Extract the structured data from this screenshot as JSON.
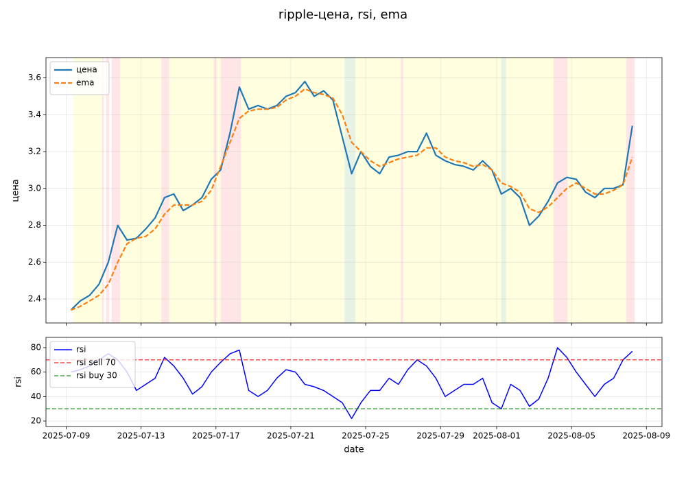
{
  "chart_data": [
    {
      "type": "line",
      "title": "ripple-цена, rsi, ema",
      "ylabel": "цена",
      "grid": true,
      "legend": "upper left",
      "x": [
        "2025-07-09T06:00",
        "2025-07-09T18:00",
        "2025-07-10T06:00",
        "2025-07-10T18:00",
        "2025-07-11T06:00",
        "2025-07-11T18:00",
        "2025-07-12T06:00",
        "2025-07-12T18:00",
        "2025-07-13T06:00",
        "2025-07-13T18:00",
        "2025-07-14T06:00",
        "2025-07-14T18:00",
        "2025-07-15T06:00",
        "2025-07-15T18:00",
        "2025-07-16T06:00",
        "2025-07-16T18:00",
        "2025-07-17T06:00",
        "2025-07-17T18:00",
        "2025-07-18T06:00",
        "2025-07-18T18:00",
        "2025-07-19T06:00",
        "2025-07-19T18:00",
        "2025-07-20T06:00",
        "2025-07-20T18:00",
        "2025-07-21T06:00",
        "2025-07-21T18:00",
        "2025-07-22T06:00",
        "2025-07-22T18:00",
        "2025-07-23T06:00",
        "2025-07-23T18:00",
        "2025-07-24T06:00",
        "2025-07-24T18:00",
        "2025-07-25T06:00",
        "2025-07-25T18:00",
        "2025-07-26T06:00",
        "2025-07-26T18:00",
        "2025-07-27T06:00",
        "2025-07-27T18:00",
        "2025-07-28T06:00",
        "2025-07-28T18:00",
        "2025-07-29T06:00",
        "2025-07-29T18:00",
        "2025-07-30T06:00",
        "2025-07-30T18:00",
        "2025-07-31T06:00",
        "2025-07-31T18:00",
        "2025-08-01T06:00",
        "2025-08-01T18:00",
        "2025-08-02T06:00",
        "2025-08-02T18:00",
        "2025-08-03T06:00",
        "2025-08-03T18:00",
        "2025-08-04T06:00",
        "2025-08-04T18:00",
        "2025-08-05T06:00",
        "2025-08-05T18:00",
        "2025-08-06T06:00",
        "2025-08-06T18:00",
        "2025-08-07T06:00",
        "2025-08-07T18:00",
        "2025-08-08T06:00"
      ],
      "series": [
        {
          "name": "цена",
          "color": "#1f77b4",
          "values": [
            2.34,
            2.39,
            2.42,
            2.48,
            2.6,
            2.8,
            2.72,
            2.73,
            2.78,
            2.84,
            2.95,
            2.97,
            2.88,
            2.91,
            2.95,
            3.05,
            3.1,
            3.3,
            3.55,
            3.43,
            3.45,
            3.43,
            3.45,
            3.5,
            3.52,
            3.58,
            3.5,
            3.53,
            3.48,
            3.28,
            3.08,
            3.2,
            3.12,
            3.08,
            3.17,
            3.18,
            3.2,
            3.2,
            3.3,
            3.18,
            3.15,
            3.13,
            3.12,
            3.1,
            3.15,
            3.1,
            2.97,
            3.0,
            2.95,
            2.8,
            2.85,
            2.93,
            3.03,
            3.06,
            3.05,
            2.98,
            2.95,
            3.0,
            3.0,
            3.02,
            3.34
          ]
        },
        {
          "name": "ema",
          "color": "#ff7f0e",
          "dashed": true,
          "values": [
            2.34,
            2.36,
            2.39,
            2.42,
            2.48,
            2.6,
            2.7,
            2.73,
            2.74,
            2.78,
            2.86,
            2.91,
            2.91,
            2.91,
            2.93,
            2.99,
            3.12,
            3.25,
            3.38,
            3.42,
            3.43,
            3.43,
            3.44,
            3.48,
            3.5,
            3.54,
            3.52,
            3.51,
            3.49,
            3.4,
            3.25,
            3.2,
            3.15,
            3.12,
            3.14,
            3.16,
            3.17,
            3.18,
            3.22,
            3.22,
            3.17,
            3.15,
            3.14,
            3.12,
            3.13,
            3.1,
            3.03,
            3.01,
            2.98,
            2.89,
            2.87,
            2.9,
            2.95,
            3.0,
            3.03,
            3.0,
            2.97,
            2.97,
            2.99,
            3.02,
            3.17
          ]
        }
      ],
      "spans": [
        {
          "start": "2025-07-09T09:00",
          "end": "2025-07-10T22:00",
          "color": "#ffff00"
        },
        {
          "start": "2025-07-10T22:00",
          "end": "2025-07-11T00:00",
          "color": "#ff0000"
        },
        {
          "start": "2025-07-11T03:00",
          "end": "2025-07-11T07:00",
          "color": "#ff0000"
        },
        {
          "start": "2025-07-11T10:00",
          "end": "2025-07-11T21:00",
          "color": "#ff0000"
        },
        {
          "start": "2025-07-11T21:00",
          "end": "2025-07-14T02:00",
          "color": "#ffff00"
        },
        {
          "start": "2025-07-14T02:00",
          "end": "2025-07-14T12:00",
          "color": "#ff0000"
        },
        {
          "start": "2025-07-14T12:00",
          "end": "2025-07-16T21:00",
          "color": "#ffff00"
        },
        {
          "start": "2025-07-16T21:00",
          "end": "2025-07-17T00:00",
          "color": "#ff0000"
        },
        {
          "start": "2025-07-17T00:00",
          "end": "2025-07-17T06:00",
          "color": "#ffff00"
        },
        {
          "start": "2025-07-17T06:00",
          "end": "2025-07-18T08:00",
          "color": "#ff0000"
        },
        {
          "start": "2025-07-18T08:00",
          "end": "2025-07-23T21:00",
          "color": "#ffff00"
        },
        {
          "start": "2025-07-23T21:00",
          "end": "2025-07-24T11:00",
          "color": "#008000"
        },
        {
          "start": "2025-07-24T11:00",
          "end": "2025-07-26T21:00",
          "color": "#ffff00"
        },
        {
          "start": "2025-07-26T21:00",
          "end": "2025-07-27T00:00",
          "color": "#ff0000"
        },
        {
          "start": "2025-07-27T00:00",
          "end": "2025-08-01T06:00",
          "color": "#ffff00"
        },
        {
          "start": "2025-08-01T06:00",
          "end": "2025-08-01T12:00",
          "color": "#008000"
        },
        {
          "start": "2025-08-01T12:00",
          "end": "2025-08-04T01:00",
          "color": "#ffff00"
        },
        {
          "start": "2025-08-04T01:00",
          "end": "2025-08-04T19:00",
          "color": "#ff0000"
        },
        {
          "start": "2025-08-04T19:00",
          "end": "2025-08-07T22:00",
          "color": "#ffff00"
        },
        {
          "start": "2025-08-07T22:00",
          "end": "2025-08-08T09:00",
          "color": "#ff0000"
        }
      ],
      "xlim": [
        "2025-07-07T22:00",
        "2025-08-09T20:00"
      ],
      "ylim": [
        2.27,
        3.71
      ],
      "yticks": [
        2.4,
        2.6,
        2.8,
        {
          "value": 3,
          "label": "3.0"
        },
        3.2,
        3.4,
        3.6
      ]
    },
    {
      "type": "line",
      "xlabel": "date",
      "ylabel": "rsi",
      "grid": true,
      "legend": "upper left",
      "x": [
        "2025-07-09T06:00",
        "2025-07-09T18:00",
        "2025-07-10T06:00",
        "2025-07-10T18:00",
        "2025-07-11T06:00",
        "2025-07-11T18:00",
        "2025-07-12T06:00",
        "2025-07-12T18:00",
        "2025-07-13T06:00",
        "2025-07-13T18:00",
        "2025-07-14T06:00",
        "2025-07-14T18:00",
        "2025-07-15T06:00",
        "2025-07-15T18:00",
        "2025-07-16T06:00",
        "2025-07-16T18:00",
        "2025-07-17T06:00",
        "2025-07-17T18:00",
        "2025-07-18T06:00",
        "2025-07-18T18:00",
        "2025-07-19T06:00",
        "2025-07-19T18:00",
        "2025-07-20T06:00",
        "2025-07-20T18:00",
        "2025-07-21T06:00",
        "2025-07-21T18:00",
        "2025-07-22T06:00",
        "2025-07-22T18:00",
        "2025-07-23T06:00",
        "2025-07-23T18:00",
        "2025-07-24T06:00",
        "2025-07-24T18:00",
        "2025-07-25T06:00",
        "2025-07-25T18:00",
        "2025-07-26T06:00",
        "2025-07-26T18:00",
        "2025-07-27T06:00",
        "2025-07-27T18:00",
        "2025-07-28T06:00",
        "2025-07-28T18:00",
        "2025-07-29T06:00",
        "2025-07-29T18:00",
        "2025-07-30T06:00",
        "2025-07-30T18:00",
        "2025-07-31T06:00",
        "2025-07-31T18:00",
        "2025-08-01T06:00",
        "2025-08-01T18:00",
        "2025-08-02T06:00",
        "2025-08-02T18:00",
        "2025-08-03T06:00",
        "2025-08-03T18:00",
        "2025-08-04T06:00",
        "2025-08-04T18:00",
        "2025-08-05T06:00",
        "2025-08-05T18:00",
        "2025-08-06T06:00",
        "2025-08-06T18:00",
        "2025-08-07T06:00",
        "2025-08-07T18:00",
        "2025-08-08T06:00"
      ],
      "series": [
        {
          "name": "rsi",
          "color": "#0000ff",
          "values": [
            60,
            62,
            65,
            70,
            75,
            70,
            60,
            45,
            50,
            55,
            72,
            65,
            55,
            42,
            48,
            60,
            68,
            75,
            78,
            45,
            40,
            45,
            55,
            62,
            60,
            50,
            48,
            45,
            40,
            35,
            22,
            35,
            45,
            45,
            55,
            50,
            62,
            70,
            65,
            55,
            40,
            45,
            50,
            50,
            55,
            35,
            30,
            50,
            45,
            32,
            38,
            55,
            80,
            72,
            60,
            50,
            40,
            50,
            55,
            70,
            77
          ]
        }
      ],
      "hlines": [
        {
          "name": "rsi sell 70",
          "value": 70,
          "color": "#ff0000"
        },
        {
          "name": "rsi buy 30",
          "value": 30,
          "color": "#008000"
        }
      ],
      "xlim": [
        "2025-07-07T22:00",
        "2025-08-09T20:00"
      ],
      "xticks": [
        "2025-07-09",
        "2025-07-13",
        "2025-07-17",
        "2025-07-21",
        "2025-07-25",
        "2025-07-29",
        "2025-08-01",
        "2025-08-05",
        "2025-08-09"
      ],
      "ylim": [
        15.5,
        88.4
      ],
      "yticks": [
        20,
        40,
        60,
        80
      ]
    }
  ]
}
